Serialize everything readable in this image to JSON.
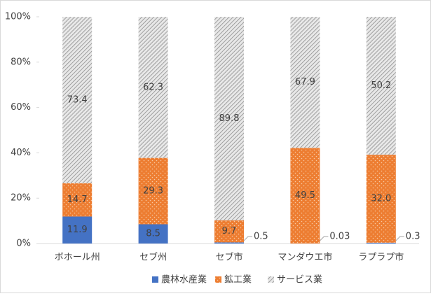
{
  "chart_data": {
    "type": "stacked_percent_bar",
    "categories": [
      "ボホール州",
      "セブ州",
      "セブ市",
      "マンダウエ市",
      "ラプラプ市"
    ],
    "series": [
      {
        "name": "農林水産業",
        "color": "#4472c4",
        "values": [
          11.9,
          8.5,
          0.5,
          0.03,
          0.3
        ]
      },
      {
        "name": "鉱工業",
        "color": "#ed7d31",
        "values": [
          14.7,
          29.3,
          9.7,
          49.5,
          32.0
        ],
        "value_labels": [
          "14.7",
          "29.3",
          "9.7",
          "49.5",
          "32.0"
        ]
      },
      {
        "name": "サービス業",
        "color": "#a6a6a6",
        "values": [
          73.4,
          62.3,
          89.8,
          67.9,
          50.2
        ]
      }
    ],
    "ylim": [
      0,
      100
    ],
    "yticks": [
      {
        "value": 0,
        "label": "0%"
      },
      {
        "value": 20,
        "label": "20%"
      },
      {
        "value": 40,
        "label": "40%"
      },
      {
        "value": 60,
        "label": "60%"
      },
      {
        "value": 80,
        "label": "80%"
      },
      {
        "value": 100,
        "label": "100%"
      }
    ],
    "grid": false,
    "legend": "bottom"
  }
}
